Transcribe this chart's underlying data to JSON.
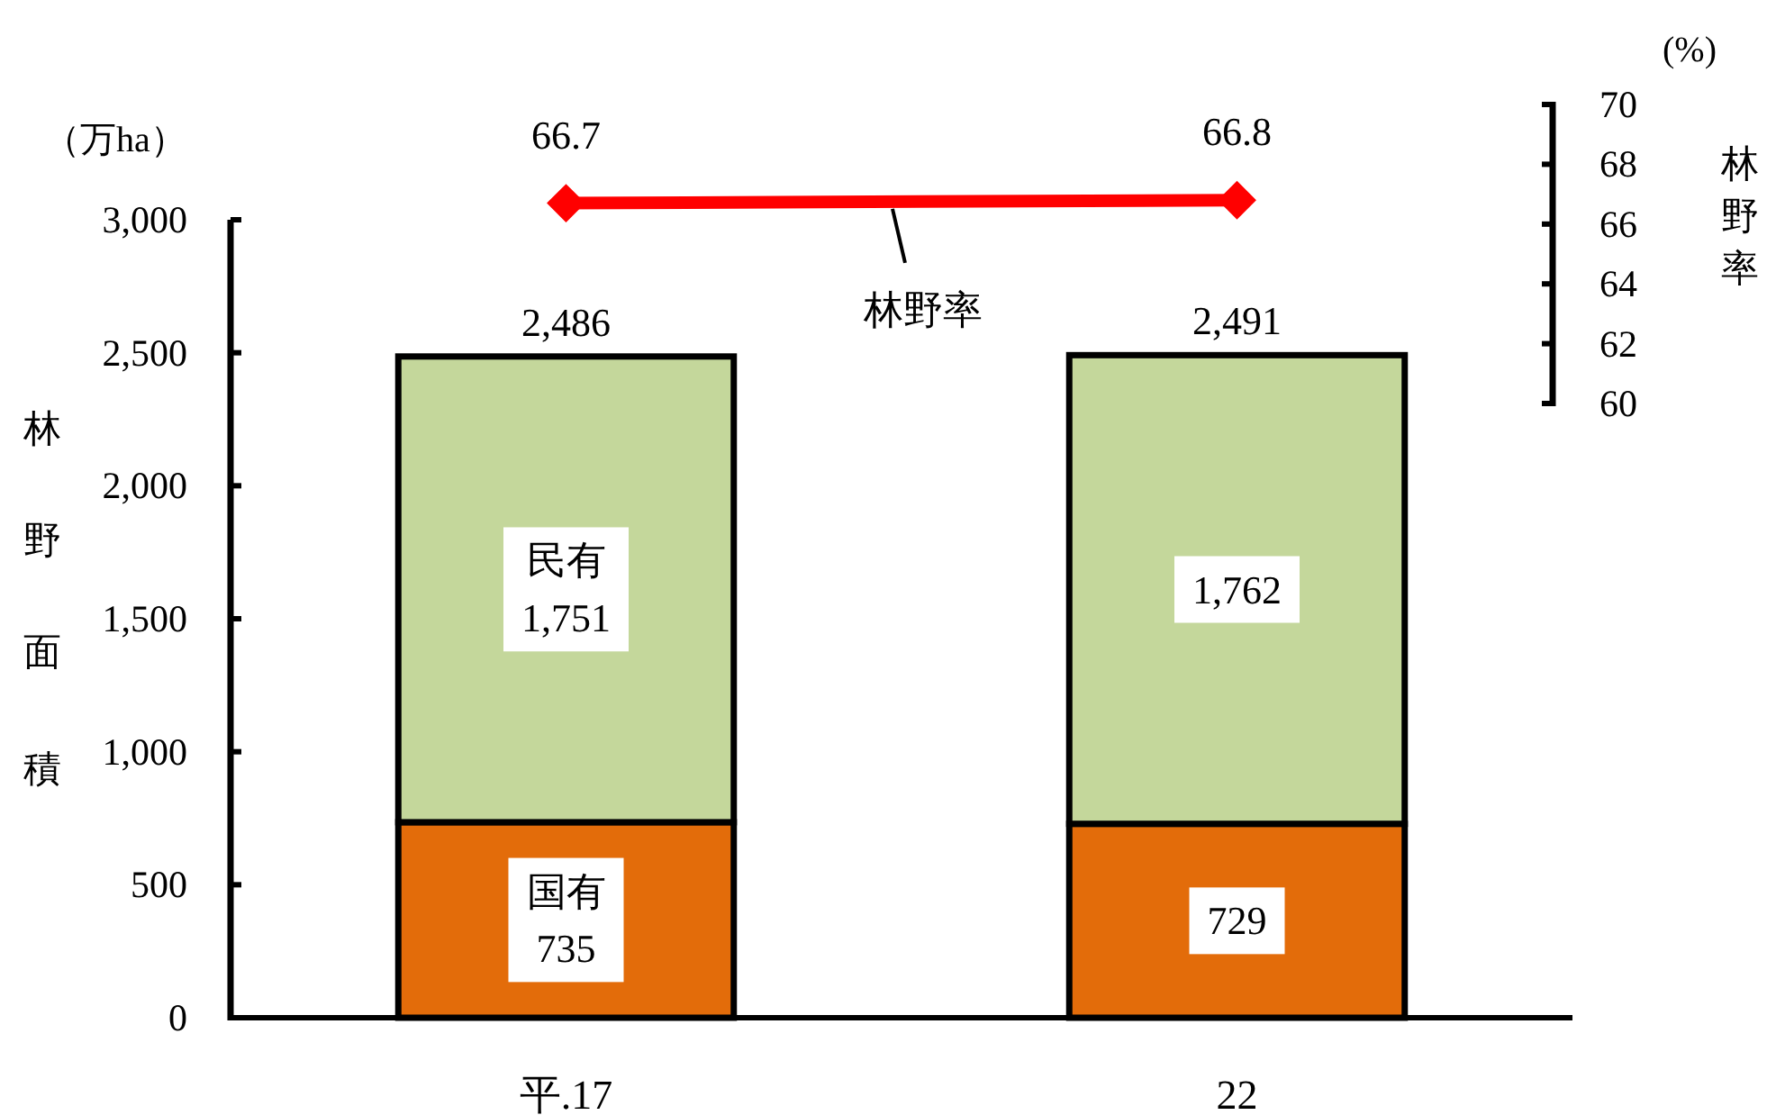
{
  "chart_data": [
    {
      "type": "bar",
      "stacked": true,
      "categories": [
        "平.17",
        "22"
      ],
      "ylabel": "林野面積",
      "annotations": [
        "（万ha）"
      ],
      "series": [
        {
          "name": "国有",
          "color": "#e36c0a",
          "values": [
            735,
            729
          ],
          "value_labels": [
            "735",
            "729"
          ]
        },
        {
          "name": "民有",
          "color": "#c4d79b",
          "values": [
            1751,
            1762
          ],
          "value_labels": [
            "1,751",
            "1,762"
          ]
        }
      ],
      "totals": [
        "2,486",
        "2,491"
      ],
      "ylim": [
        0,
        3000
      ],
      "yticks": [
        0,
        500,
        {
          "value": 1000,
          "label": "1,000"
        },
        {
          "value": 1500,
          "label": "1,500"
        },
        {
          "value": 2000,
          "label": "2,000"
        },
        {
          "value": 2500,
          "label": "2,500"
        },
        {
          "value": 3000,
          "label": "3,000"
        }
      ]
    },
    {
      "type": "line",
      "categories": [
        null,
        null
      ],
      "tick_labels": "y",
      "ylabel": "林野率",
      "annotations": [
        "(%)"
      ],
      "series": [
        {
          "name": "林野率",
          "color": "#ff0000",
          "values": [
            66.7,
            66.8
          ],
          "value_labels": [
            "66.7",
            "66.8"
          ]
        }
      ],
      "marker": "diamond",
      "ylim": [
        60,
        70
      ],
      "yticks": [
        60,
        62,
        64,
        66,
        68,
        70
      ]
    }
  ]
}
